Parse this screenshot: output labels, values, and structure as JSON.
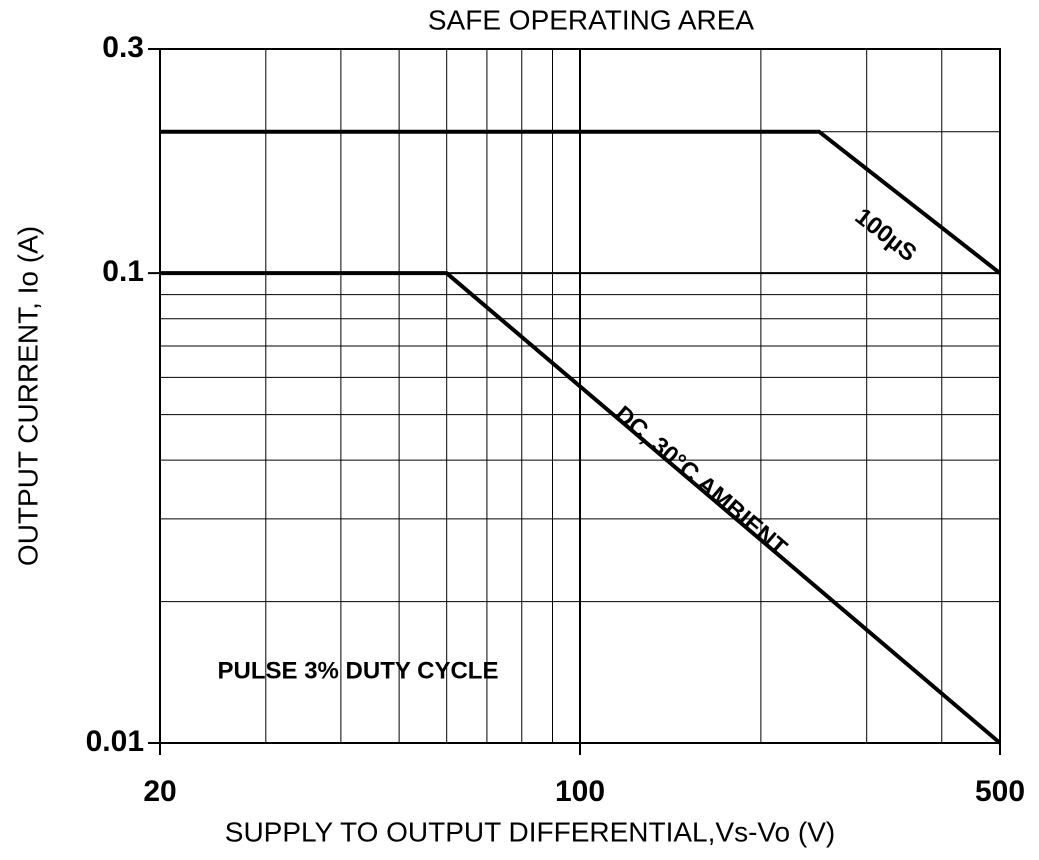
{
  "chart_data": {
    "type": "line",
    "title": "SAFE OPERATING AREA",
    "x_label": "SUPPLY TO OUTPUT DIFFERENTIAL,Vs-Vo (V)",
    "y_label": "OUTPUT CURRENT, Io (A)",
    "x_scale": "log",
    "y_scale": "log",
    "grid": true,
    "xlim": [
      20,
      500
    ],
    "ylim": [
      0.01,
      0.3
    ],
    "xticks": [
      20,
      100,
      500
    ],
    "xminor_ticks": [
      30,
      40,
      50,
      60,
      70,
      80,
      90,
      200,
      300,
      400
    ],
    "yticks": [
      0.01,
      0.1,
      0.3
    ],
    "yminor_ticks": [
      0.02,
      0.03,
      0.04,
      0.05,
      0.06,
      0.07,
      0.08,
      0.09,
      0.2
    ],
    "series": [
      {
        "name": "100µS",
        "color": "#000000",
        "x": [
          20,
          250,
          500
        ],
        "values": [
          0.2,
          0.2,
          0.1
        ]
      },
      {
        "name": "DC, 30°C AMBIENT",
        "color": "#000000",
        "x": [
          20,
          60,
          500
        ],
        "values": [
          0.1,
          0.1,
          0.01
        ]
      }
    ],
    "annotations": [
      "PULSE 3% DUTY CYCLE"
    ]
  }
}
